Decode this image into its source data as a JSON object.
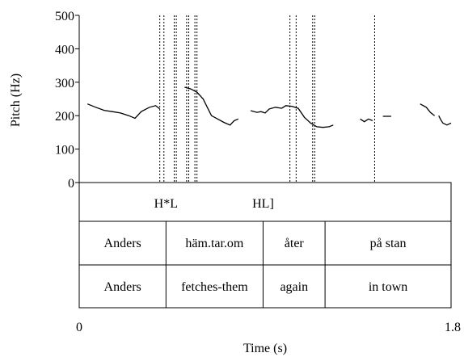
{
  "chart_data": {
    "type": "line",
    "xlabel": "Time (s)",
    "ylabel": "Pitch (Hz)",
    "xlim": [
      0,
      1.8
    ],
    "ylim": [
      0,
      500
    ],
    "x_ticks": [
      "0",
      "1.8"
    ],
    "y_ticks": [
      "0",
      "100",
      "200",
      "300",
      "400",
      "500"
    ],
    "grid": false,
    "series": [
      {
        "segments": [
          [
            [
              0.04,
              235
            ],
            [
              0.08,
              225
            ],
            [
              0.12,
              216
            ],
            [
              0.16,
              212
            ],
            [
              0.2,
              208
            ],
            [
              0.24,
              200
            ],
            [
              0.27,
              192
            ],
            [
              0.3,
              212
            ],
            [
              0.34,
              225
            ],
            [
              0.37,
              230
            ],
            [
              0.39,
              220
            ]
          ],
          [
            [
              0.51,
              285
            ],
            [
              0.54,
              280
            ],
            [
              0.57,
              270
            ],
            [
              0.6,
              250
            ],
            [
              0.62,
              225
            ],
            [
              0.64,
              200
            ],
            [
              0.67,
              190
            ],
            [
              0.7,
              180
            ],
            [
              0.73,
              172
            ],
            [
              0.75,
              185
            ],
            [
              0.77,
              190
            ]
          ],
          [
            [
              0.83,
              215
            ],
            [
              0.86,
              210
            ],
            [
              0.88,
              212
            ],
            [
              0.9,
              208
            ],
            [
              0.92,
              220
            ],
            [
              0.95,
              225
            ],
            [
              0.98,
              222
            ],
            [
              1.0,
              230
            ],
            [
              1.03,
              228
            ],
            [
              1.06,
              222
            ],
            [
              1.09,
              195
            ],
            [
              1.12,
              178
            ],
            [
              1.15,
              167
            ],
            [
              1.18,
              165
            ],
            [
              1.21,
              167
            ],
            [
              1.23,
              172
            ]
          ],
          [
            [
              1.36,
              190
            ],
            [
              1.38,
              182
            ],
            [
              1.4,
              190
            ],
            [
              1.42,
              185
            ]
          ],
          [
            [
              1.47,
              198
            ],
            [
              1.51,
              198
            ]
          ],
          [
            [
              1.65,
              235
            ],
            [
              1.68,
              225
            ],
            [
              1.7,
              210
            ],
            [
              1.72,
              200
            ]
          ],
          [
            [
              1.74,
              200
            ],
            [
              1.75,
              188
            ],
            [
              1.76,
              178
            ],
            [
              1.78,
              172
            ],
            [
              1.8,
              178
            ]
          ]
        ]
      }
    ],
    "vertical_markers": [
      0.39,
      0.41,
      0.46,
      0.47,
      0.52,
      0.53,
      0.56,
      0.57,
      1.02,
      1.05,
      1.13,
      1.14,
      1.43
    ],
    "tone_tier": [
      {
        "label": "H*L",
        "x": 0.42
      },
      {
        "label": "HL]",
        "x": 0.89
      }
    ],
    "word_tier": [
      {
        "start": 0.0,
        "end": 0.42,
        "label": "Anders"
      },
      {
        "start": 0.42,
        "end": 0.89,
        "label": "häm.tar.om"
      },
      {
        "start": 0.89,
        "end": 1.19,
        "label": "åter"
      },
      {
        "start": 1.19,
        "end": 1.8,
        "label": "på stan"
      }
    ],
    "gloss_tier": [
      {
        "start": 0.0,
        "end": 0.42,
        "label": "Anders"
      },
      {
        "start": 0.42,
        "end": 0.89,
        "label": "fetches-them"
      },
      {
        "start": 0.89,
        "end": 1.19,
        "label": "again"
      },
      {
        "start": 1.19,
        "end": 1.8,
        "label": "in town"
      }
    ]
  }
}
